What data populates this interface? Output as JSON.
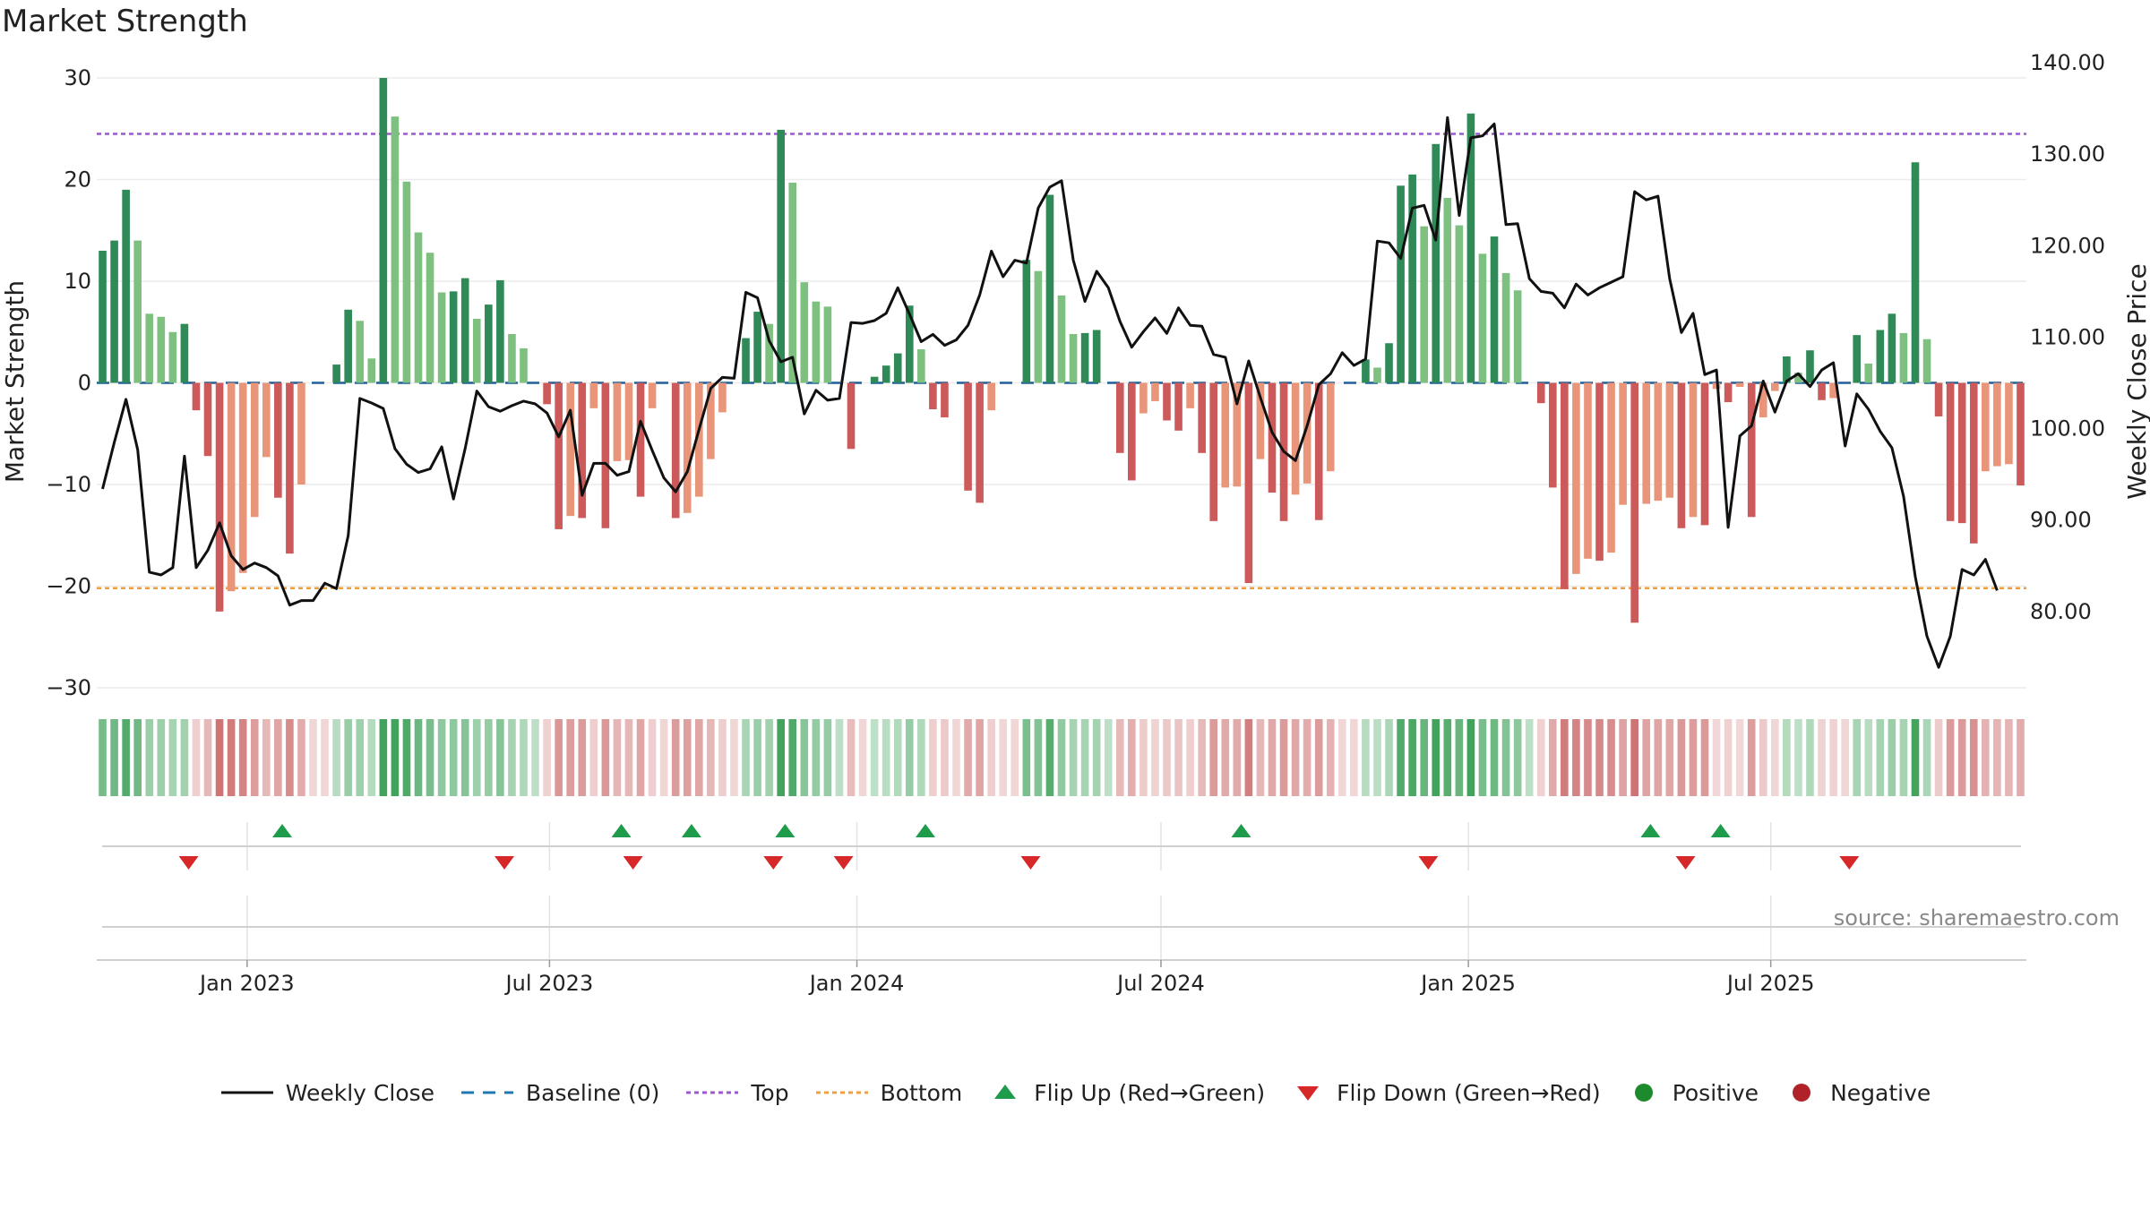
{
  "title": "Market Strength",
  "source": "source: sharemaestro.com",
  "chart_data": {
    "type": "bar",
    "x_start": "2022-10-03",
    "x_step_days": 7,
    "x_ticks": [
      "Jan 2023",
      "Jul 2023",
      "Jan 2024",
      "Jul 2024",
      "Jan 2025",
      "Jul 2025"
    ],
    "x_tick_dates": [
      "2023-01-01",
      "2023-07-01",
      "2024-01-01",
      "2024-07-01",
      "2025-01-01",
      "2025-07-01"
    ],
    "left_axis": {
      "label": "Market Strength",
      "range": [
        -31.5,
        31.5
      ],
      "ticks": [
        30,
        20,
        10,
        0,
        -10,
        -20,
        -30
      ],
      "tick_labels": [
        "30",
        "20",
        "10",
        "0",
        "−10",
        "−20",
        "−30"
      ]
    },
    "right_axis": {
      "label": "Weekly Close Price",
      "range": [
        70,
        140
      ],
      "ticks": [
        140,
        130,
        120,
        110,
        100,
        90,
        80
      ],
      "tick_labels": [
        "140.00",
        "130.00",
        "120.00",
        "110.00",
        "100.00",
        "90.00",
        "80.00"
      ]
    },
    "top_line": 24.5,
    "bottom_line": -20.2,
    "strength": [
      13,
      14,
      19,
      14,
      6.8,
      6.5,
      5,
      5.8,
      -2.7,
      -7.2,
      -22.5,
      -20.5,
      -18.7,
      -13.2,
      -7.3,
      -11.3,
      -16.8,
      -10,
      0,
      0,
      1.8,
      7.2,
      6.1,
      2.4,
      30,
      26.2,
      19.8,
      14.8,
      12.8,
      8.9,
      9,
      10.3,
      6.3,
      7.7,
      10.1,
      4.8,
      3.4,
      0,
      -2.1,
      -14.4,
      -13.1,
      -13.3,
      -2.5,
      -14.3,
      -7.7,
      -7.6,
      -11.2,
      -2.5,
      0,
      -13.3,
      -12.8,
      -11.2,
      -7.5,
      -2.9,
      0,
      4.4,
      7,
      5.8,
      24.9,
      19.7,
      9.9,
      8,
      7.5,
      0,
      -6.5,
      0,
      0.6,
      1.7,
      2.9,
      7.6,
      3.3,
      -2.6,
      -3.4,
      0,
      -10.6,
      -11.8,
      -2.7,
      0,
      0,
      12.1,
      11,
      18.5,
      8.6,
      4.8,
      4.9,
      5.2,
      0,
      -6.9,
      -9.6,
      -3,
      -1.8,
      -3.7,
      -4.7,
      -2.5,
      -6.9,
      -13.6,
      -10.3,
      -10.2,
      -19.7,
      -7.5,
      -10.8,
      -13.6,
      -11,
      -9.9,
      -13.5,
      -8.7,
      0,
      0,
      2.3,
      1.5,
      3.9,
      19.4,
      20.5,
      15.4,
      23.5,
      18.2,
      15.5,
      26.5,
      12.7,
      14.4,
      10.8,
      9.1,
      0,
      -2,
      -10.3,
      -20.3,
      -18.8,
      -17.3,
      -17.5,
      -16.7,
      -12,
      -23.6,
      -11.9,
      -11.6,
      -11.3,
      -14.3,
      -13.2,
      -14,
      -0.6,
      -1.9,
      -0.4,
      -13.2,
      -3.4,
      -0.8,
      2.6,
      1,
      3.2,
      -1.7,
      -1.5,
      0,
      4.7,
      1.9,
      5.2,
      6.8,
      4.9,
      21.7,
      4.3,
      -3.3,
      -13.6,
      -13.8,
      -15.8,
      -8.7,
      -8.2,
      -8,
      -10.1
    ],
    "weekly_close": [
      93.4,
      98.5,
      103.2,
      97.7,
      84.3,
      84,
      84.8,
      97,
      84.8,
      86.7,
      89.7,
      86.1,
      84.6,
      85.3,
      84.8,
      83.9,
      80.7,
      81.2,
      81.2,
      83.1,
      82.5,
      88.3,
      103.3,
      102.8,
      102.2,
      97.8,
      96.1,
      95.2,
      95.6,
      98,
      92.3,
      97.8,
      104.1,
      102.4,
      101.9,
      102.5,
      103,
      102.7,
      101.7,
      99.1,
      102,
      92.7,
      96.2,
      96.2,
      94.9,
      95.3,
      100.8,
      97.6,
      94.6,
      93.1,
      95.3,
      99.9,
      104.4,
      105.6,
      105.5,
      114.9,
      114.3,
      109.6,
      107.3,
      107.8,
      101.6,
      104.2,
      103.1,
      103.3,
      111.6,
      111.5,
      111.8,
      112.6,
      115.4,
      112.5,
      109.5,
      110.3,
      109.1,
      109.7,
      111.3,
      114.6,
      119.4,
      116.6,
      118.4,
      118.1,
      124.1,
      126.4,
      127.1,
      118.4,
      113.9,
      117.2,
      115.4,
      111.7,
      108.9,
      110.6,
      112.1,
      110.4,
      113.2,
      111.3,
      111.2,
      108.1,
      107.8,
      102.7,
      107.4,
      103.4,
      99.6,
      97.5,
      96.5,
      100.3,
      104.8,
      106,
      108.3,
      106.9,
      107.6,
      120.5,
      120.3,
      118.6,
      124.1,
      124.4,
      120.6,
      134,
      123.3,
      131.8,
      132,
      133.3,
      122.3,
      122.4,
      116.4,
      115,
      114.8,
      113.2,
      115.8,
      114.6,
      115.4,
      116,
      116.6,
      125.9,
      125,
      125.4,
      116.4,
      110.5,
      112.6,
      105.9,
      106.4,
      89.2,
      99.2,
      100.3,
      105.2,
      101.8,
      105.2,
      106,
      104.6,
      106.4,
      107.2,
      98.1,
      103.8,
      102.1,
      99.7,
      97.9,
      92.6,
      83.8,
      77.3,
      73.9,
      77.3,
      84.6,
      84,
      85.7,
      82.3
    ],
    "flip_up_dates": [
      "2023-01-22",
      "2023-08-13",
      "2023-09-24",
      "2023-11-19",
      "2024-02-11",
      "2024-08-18",
      "2025-04-20",
      "2025-06-01"
    ],
    "flip_down_dates": [
      "2022-11-27",
      "2023-06-04",
      "2023-08-20",
      "2023-11-12",
      "2023-12-24",
      "2024-04-14",
      "2024-12-08",
      "2025-05-11",
      "2025-08-17"
    ],
    "series": [
      {
        "name": "Weekly Close",
        "color": "#111111"
      },
      {
        "name": "Baseline (0)",
        "color": "#1f77b4"
      },
      {
        "name": "Top",
        "color": "#9b59d0"
      },
      {
        "name": "Bottom",
        "color": "#f0a040"
      },
      {
        "name": "Flip Up (Red→Green)",
        "color": "#1e9b4b"
      },
      {
        "name": "Flip Down (Green→Red)",
        "color": "#d62828"
      },
      {
        "name": "Positive",
        "color": "#1e8a2e"
      },
      {
        "name": "Negative",
        "color": "#b02228"
      }
    ],
    "legend_position": "bottom",
    "grid": true
  }
}
